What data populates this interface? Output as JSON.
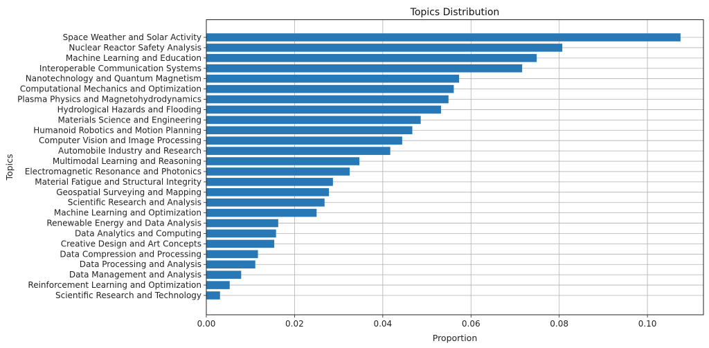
{
  "chart_data": {
    "type": "bar",
    "orientation": "horizontal",
    "title": "Topics Distribution",
    "xlabel": "Proportion",
    "ylabel": "Topics",
    "xlim": [
      0,
      0.1127
    ],
    "xticks": [
      0.0,
      0.02,
      0.04,
      0.06,
      0.08,
      0.1
    ],
    "xtick_labels": [
      "0.00",
      "0.02",
      "0.04",
      "0.06",
      "0.08",
      "0.10"
    ],
    "grid": true,
    "bar_color": "#2878b5",
    "categories": [
      "Space Weather and Solar Activity",
      "Nuclear Reactor Safety Analysis",
      "Machine Learning and Education",
      "Interoperable Communication Systems",
      "Nanotechnology and Quantum Magnetism",
      "Computational Mechanics and Optimization",
      "Plasma Physics and Magnetohydrodynamics",
      "Hydrological Hazards and Flooding",
      "Materials Science and Engineering",
      "Humanoid Robotics and Motion Planning",
      "Computer Vision and Image Processing",
      "Automobile Industry and Research",
      "Multimodal Learning and Reasoning",
      "Electromagnetic Resonance and Photonics",
      "Material Fatigue and Structural Integrity",
      "Geospatial Surveying and Mapping",
      "Scientific Research and Analysis",
      "Machine Learning and Optimization",
      "Renewable Energy and Data Analysis",
      "Data Analytics and Computing",
      "Creative Design and Art Concepts",
      "Data Compression and Processing",
      "Data Processing and Analysis",
      "Data Management and Analysis",
      "Reinforcement Learning and Optimization",
      "Scientific Research and Technology"
    ],
    "values": [
      0.1075,
      0.0807,
      0.0749,
      0.0716,
      0.0573,
      0.0561,
      0.0549,
      0.0532,
      0.0486,
      0.0467,
      0.0444,
      0.0417,
      0.0347,
      0.0325,
      0.0287,
      0.0278,
      0.0268,
      0.025,
      0.0163,
      0.0158,
      0.0154,
      0.0117,
      0.0111,
      0.0079,
      0.0053,
      0.0031
    ]
  }
}
